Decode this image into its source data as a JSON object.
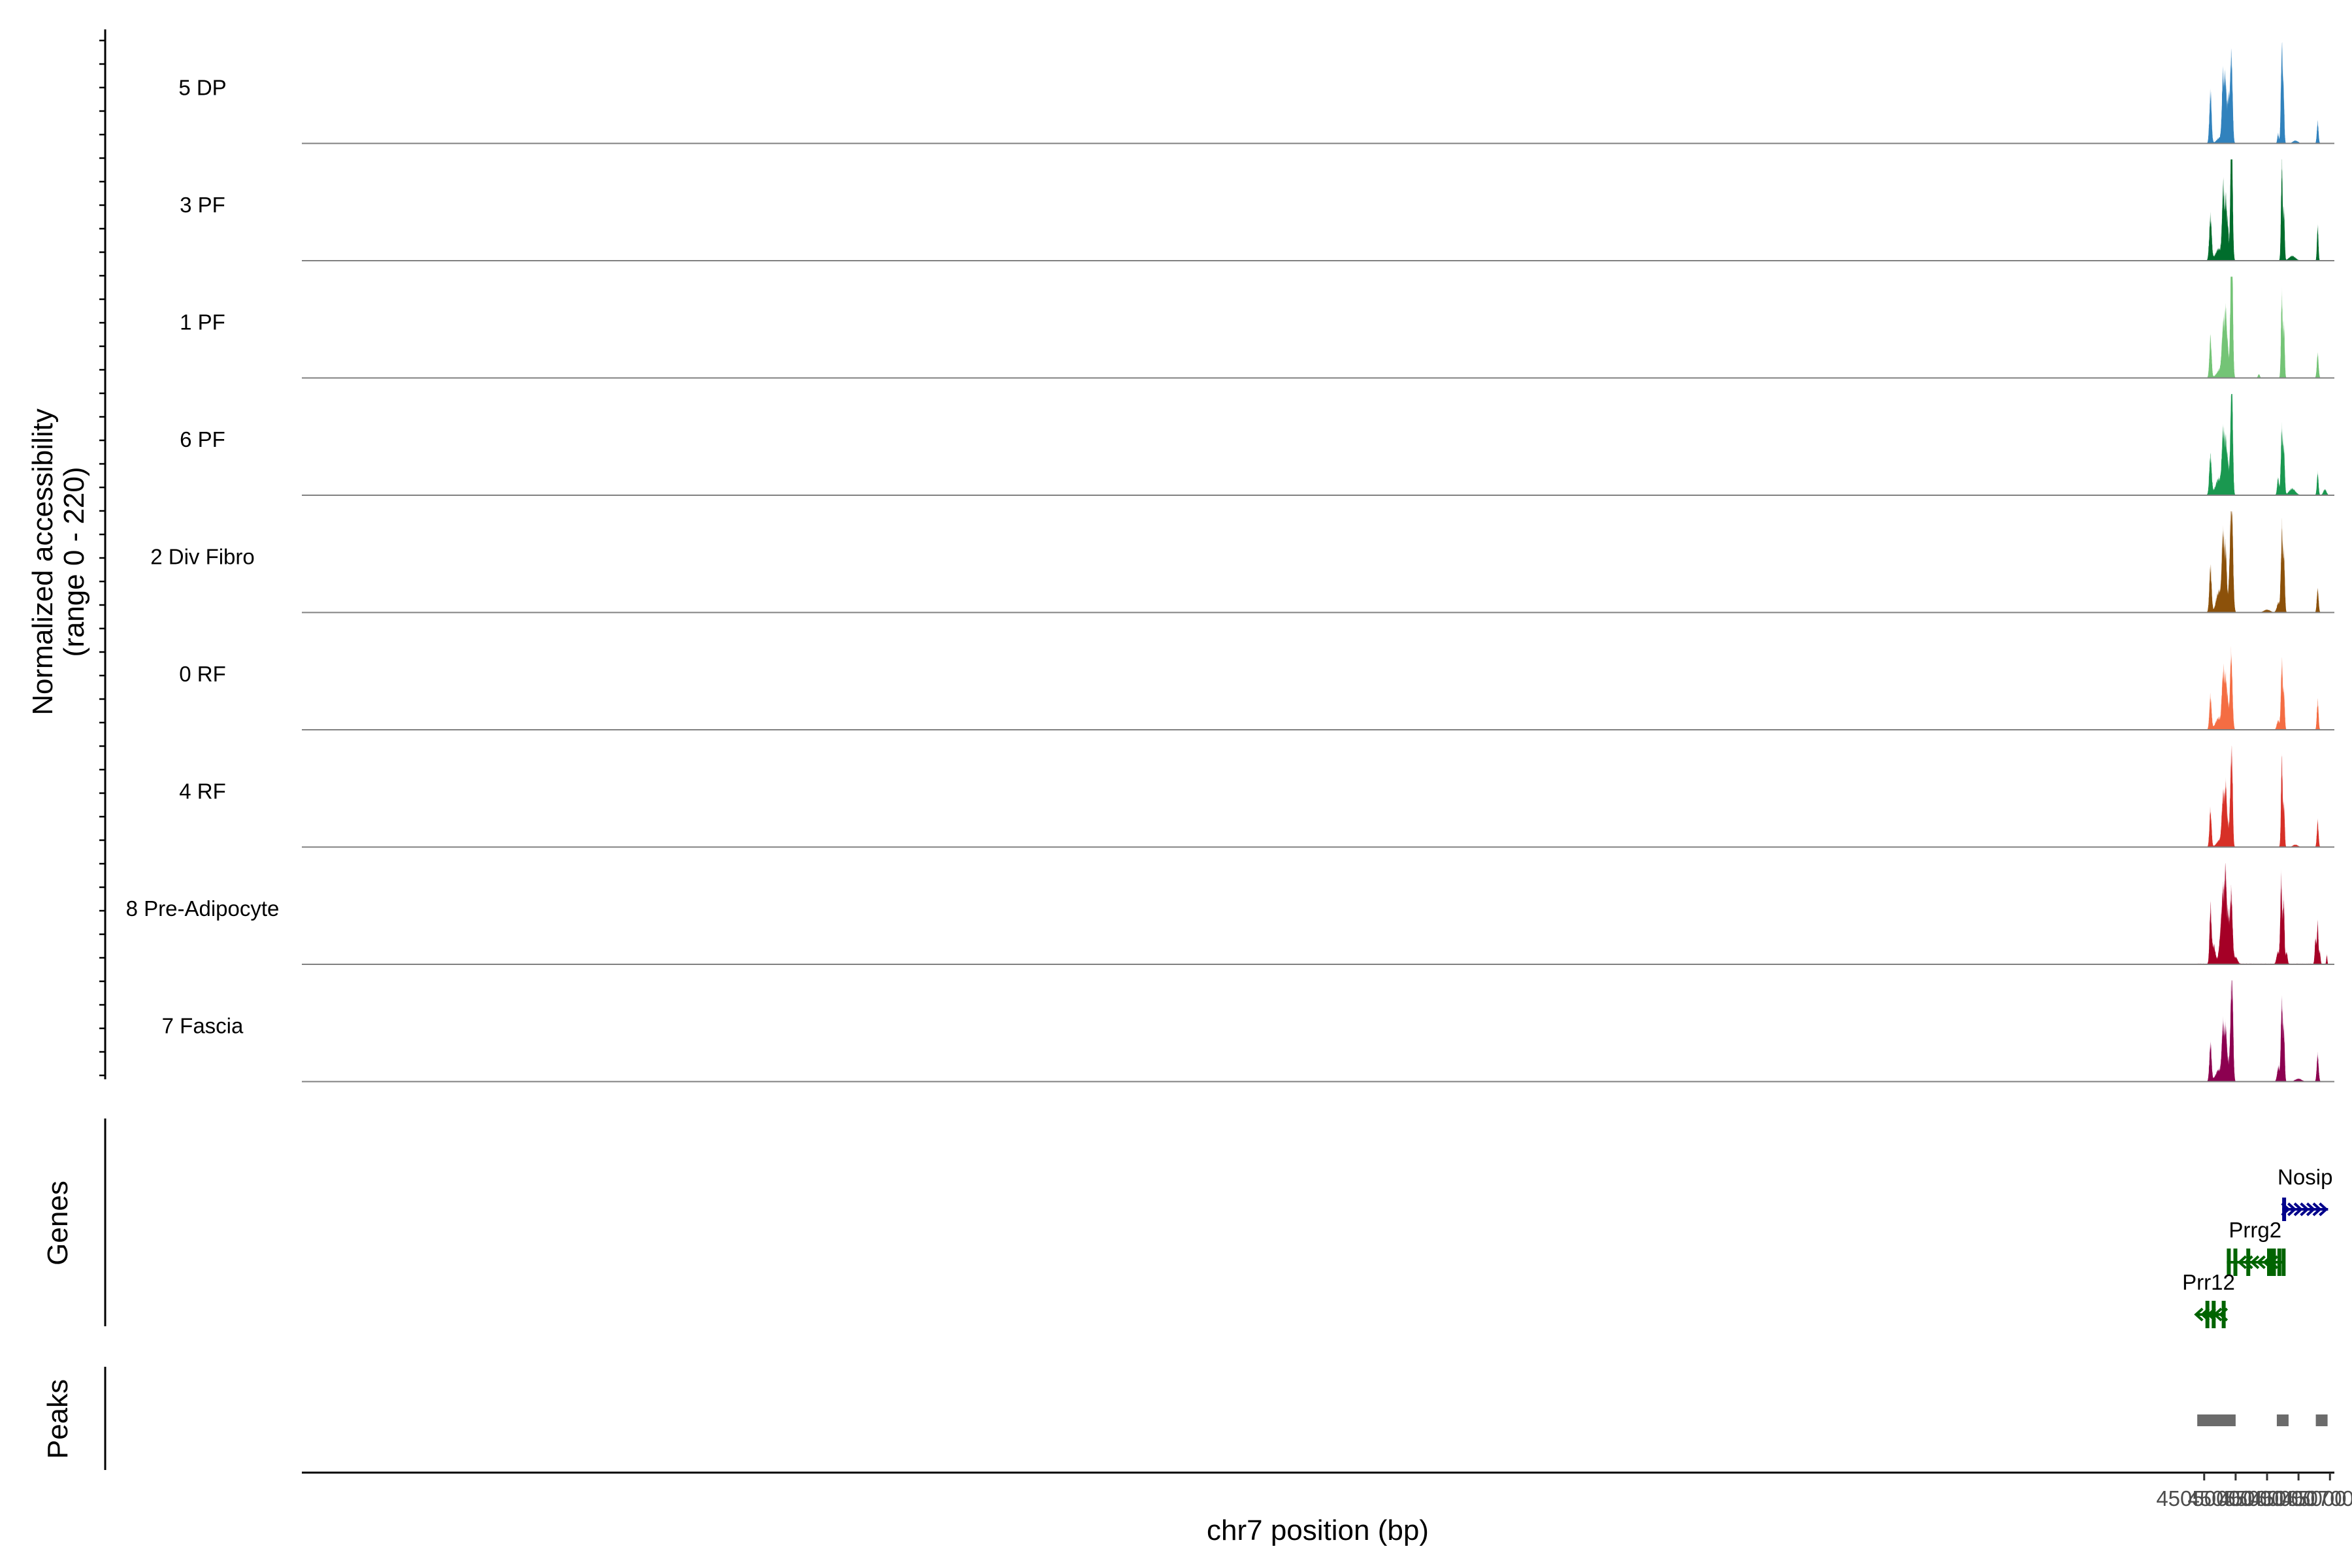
{
  "chart_data": {
    "type": "area",
    "title": "",
    "xlabel": "chr7 position (bp)",
    "ylabel": "Normalized accessibility (range 0 - 220)",
    "ylabel_lines": [
      "Normalized accessibility",
      "(range 0 - 220)"
    ],
    "chromosome": "chr7",
    "xlim": [
      44747500,
      45070700
    ],
    "ylim": [
      0,
      220
    ],
    "x_ticks": [
      45050000,
      45055000,
      45060000,
      45065000,
      45070000
    ],
    "x_tick_labels": [
      "45050000",
      "45055000",
      "45060000",
      "45065000",
      "45070000"
    ],
    "grid": false,
    "series": [
      {
        "name": "5 DP",
        "color": "#3182BD",
        "noise": 0.05,
        "peaks": [
          [
            45051000,
            110,
            170
          ],
          [
            45052500,
            12,
            500
          ],
          [
            45053000,
            135,
            180
          ],
          [
            45053400,
            130,
            150
          ],
          [
            45053800,
            80,
            140
          ],
          [
            45054200,
            115,
            200
          ],
          [
            45054400,
            105,
            160
          ],
          [
            45061750,
            20,
            120
          ],
          [
            45062350,
            205,
            150
          ],
          [
            45062650,
            85,
            110
          ],
          [
            45064500,
            6,
            400
          ],
          [
            45068050,
            45,
            130
          ]
        ]
      },
      {
        "name": "3 PF",
        "color": "#006D2C",
        "noise": 0.05,
        "peaks": [
          [
            45051000,
            95,
            190
          ],
          [
            45052300,
            25,
            500
          ],
          [
            45053000,
            140,
            170
          ],
          [
            45053450,
            125,
            190
          ],
          [
            45053800,
            55,
            110
          ],
          [
            45054300,
            185,
            160
          ],
          [
            45054400,
            150,
            160
          ],
          [
            45062350,
            205,
            130
          ],
          [
            45062700,
            100,
            110
          ],
          [
            45064000,
            10,
            500
          ],
          [
            45068050,
            75,
            110
          ]
        ]
      },
      {
        "name": "1 PF",
        "color": "#74C476",
        "noise": 0.04,
        "peaks": [
          [
            45051000,
            85,
            170
          ],
          [
            45052500,
            18,
            500
          ],
          [
            45053000,
            100,
            200
          ],
          [
            45053450,
            130,
            190
          ],
          [
            45053800,
            40,
            120
          ],
          [
            45054300,
            200,
            170
          ],
          [
            45054450,
            150,
            150
          ],
          [
            45062350,
            175,
            130
          ],
          [
            45062700,
            105,
            110
          ],
          [
            45068050,
            50,
            140
          ],
          [
            45058700,
            8,
            150
          ]
        ]
      },
      {
        "name": "6 PF",
        "color": "#1A9850",
        "noise": 0.06,
        "peaks": [
          [
            45051000,
            80,
            190
          ],
          [
            45052300,
            35,
            500
          ],
          [
            45053000,
            115,
            200
          ],
          [
            45053450,
            105,
            190
          ],
          [
            45053800,
            50,
            140
          ],
          [
            45054300,
            160,
            190
          ],
          [
            45054450,
            125,
            140
          ],
          [
            45061750,
            35,
            150
          ],
          [
            45062350,
            135,
            160
          ],
          [
            45062700,
            85,
            130
          ],
          [
            45064000,
            14,
            500
          ],
          [
            45068050,
            48,
            130
          ],
          [
            45069200,
            12,
            250
          ]
        ]
      },
      {
        "name": "2 Div Fibro",
        "color": "#8C510A",
        "noise": 0.05,
        "peaks": [
          [
            45051000,
            95,
            180
          ],
          [
            45052300,
            45,
            400
          ],
          [
            45053000,
            160,
            200
          ],
          [
            45053450,
            120,
            170
          ],
          [
            45054100,
            85,
            200
          ],
          [
            45054400,
            205,
            200
          ],
          [
            45061800,
            20,
            250
          ],
          [
            45062350,
            170,
            150
          ],
          [
            45062700,
            115,
            130
          ],
          [
            45068050,
            50,
            140
          ],
          [
            45060000,
            6,
            500
          ]
        ]
      },
      {
        "name": "0 RF",
        "color": "#F46D43",
        "noise": 0.05,
        "peaks": [
          [
            45051000,
            70,
            170
          ],
          [
            45052300,
            25,
            500
          ],
          [
            45053000,
            110,
            190
          ],
          [
            45053450,
            105,
            190
          ],
          [
            45053800,
            40,
            130
          ],
          [
            45054300,
            165,
            190
          ],
          [
            45061750,
            20,
            200
          ],
          [
            45062350,
            140,
            150
          ],
          [
            45062700,
            70,
            120
          ],
          [
            45068050,
            60,
            130
          ]
        ]
      },
      {
        "name": "4 RF",
        "color": "#D73027",
        "noise": 0.05,
        "peaks": [
          [
            45051000,
            80,
            160
          ],
          [
            45052500,
            15,
            500
          ],
          [
            45053000,
            100,
            200
          ],
          [
            45053450,
            120,
            170
          ],
          [
            45053800,
            30,
            120
          ],
          [
            45054250,
            140,
            180
          ],
          [
            45054450,
            110,
            130
          ],
          [
            45062350,
            180,
            130
          ],
          [
            45062700,
            85,
            110
          ],
          [
            45068050,
            55,
            130
          ],
          [
            45064500,
            5,
            400
          ]
        ]
      },
      {
        "name": "8 Pre-Adipocyte",
        "color": "#A50026",
        "noise": 0.16,
        "peaks": [
          [
            45051000,
            110,
            150
          ],
          [
            45051500,
            40,
            300
          ],
          [
            45052600,
            60,
            250
          ],
          [
            45053000,
            130,
            200
          ],
          [
            45053400,
            180,
            160
          ],
          [
            45053800,
            95,
            180
          ],
          [
            45054300,
            150,
            200
          ],
          [
            45055000,
            15,
            300
          ],
          [
            45061700,
            25,
            200
          ],
          [
            45062250,
            175,
            150
          ],
          [
            45062650,
            130,
            120
          ],
          [
            45063100,
            25,
            150
          ],
          [
            45067700,
            55,
            120
          ],
          [
            45068050,
            85,
            120
          ],
          [
            45068400,
            25,
            100
          ],
          [
            45069500,
            20,
            80
          ]
        ]
      },
      {
        "name": "7 Fascia",
        "color": "#8C0050",
        "noise": 0.05,
        "peaks": [
          [
            45051000,
            80,
            170
          ],
          [
            45052300,
            25,
            500
          ],
          [
            45053000,
            110,
            200
          ],
          [
            45053450,
            105,
            170
          ],
          [
            45053800,
            30,
            120
          ],
          [
            45054300,
            150,
            200
          ],
          [
            45054500,
            110,
            150
          ],
          [
            45061800,
            30,
            200
          ],
          [
            45062350,
            170,
            150
          ],
          [
            45062700,
            95,
            120
          ],
          [
            45068050,
            55,
            150
          ],
          [
            45065000,
            6,
            500
          ]
        ]
      }
    ],
    "genes": [
      {
        "name": "Nosip",
        "strand": "+",
        "color": "#00008B",
        "start": 45062400,
        "end": 45069700,
        "exons": [
          [
            45062400,
            45062500
          ]
        ],
        "arrows": [
          45063400,
          45064400,
          45065400,
          45066400,
          45067400,
          45068400,
          45069400
        ]
      },
      {
        "name": "Prrg2",
        "strand": "-",
        "color": "#006400",
        "start": 45053600,
        "end": 45062600,
        "exons": [
          [
            45053600,
            45054200
          ],
          [
            45054650,
            45055000
          ],
          [
            45056700,
            45056830
          ],
          [
            45060000,
            45060020
          ],
          [
            45060250,
            45060420
          ],
          [
            45060780,
            45060900
          ],
          [
            45061640,
            45061970
          ],
          [
            45062320,
            45062600
          ]
        ],
        "arrows": [
          45055600,
          45056600,
          45057600,
          45058600,
          45059600,
          45060600
        ]
      },
      {
        "name": "Prr12",
        "strand": "-",
        "color": "#006400",
        "start": 45048700,
        "end": 45052850,
        "exons": [
          [
            45050200,
            45050350
          ],
          [
            45051200,
            45051310
          ],
          [
            45052790,
            45052850
          ]
        ],
        "arrows": [
          45048700,
          45049700,
          45050700,
          45051700,
          45052600
        ]
      }
    ],
    "peaks": [
      [
        45048900,
        45049000
      ],
      [
        45050750,
        45055000
      ],
      [
        45061550,
        45063150
      ],
      [
        45067750,
        45068350
      ]
    ],
    "panel_labels": {
      "genes": "Genes",
      "peaks": "Peaks"
    }
  }
}
